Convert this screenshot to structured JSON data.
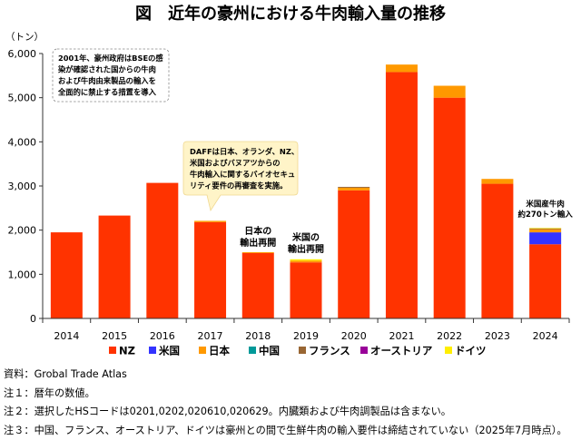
{
  "chart_data": {
    "type": "bar",
    "stacked": true,
    "title": "図　近年の豪州における牛肉輸入量の推移",
    "ylabel": "（トン）",
    "ylim": [
      0,
      6000
    ],
    "yticks": [
      0,
      1000,
      2000,
      3000,
      4000,
      5000,
      6000
    ],
    "ytick_labels": [
      "0",
      "1,000",
      "2,000",
      "3,000",
      "4,000",
      "5,000",
      "6,000"
    ],
    "grid": false,
    "legend_position": "bottom",
    "categories": [
      "2014",
      "2015",
      "2016",
      "2017",
      "2018",
      "2019",
      "2020",
      "2021",
      "2022",
      "2023",
      "2024"
    ],
    "series": [
      {
        "name": "NZ",
        "color": "#ff3300",
        "values": [
          1950,
          2330,
          3070,
          2180,
          1480,
          1270,
          2900,
          5580,
          5000,
          3050,
          1680
        ]
      },
      {
        "name": "米国",
        "color": "#3333ff",
        "values": [
          0,
          0,
          0,
          0,
          0,
          0,
          0,
          0,
          0,
          0,
          270
        ]
      },
      {
        "name": "日本",
        "color": "#ff9900",
        "values": [
          0,
          0,
          0,
          30,
          20,
          40,
          60,
          170,
          270,
          110,
          70
        ]
      },
      {
        "name": "中国",
        "color": "#009999",
        "values": [
          0,
          0,
          0,
          0,
          0,
          0,
          0,
          0,
          0,
          0,
          0
        ]
      },
      {
        "name": "フランス",
        "color": "#996633",
        "values": [
          0,
          0,
          0,
          0,
          0,
          0,
          20,
          0,
          0,
          0,
          20
        ]
      },
      {
        "name": "オーストリア",
        "color": "#990099",
        "values": [
          0,
          0,
          0,
          0,
          0,
          0,
          0,
          0,
          0,
          0,
          0
        ]
      },
      {
        "name": "ドイツ",
        "color": "#ffee00",
        "values": [
          0,
          0,
          0,
          0,
          0,
          30,
          0,
          0,
          0,
          0,
          10
        ]
      }
    ],
    "annotations": [
      {
        "category": "2014",
        "box": true,
        "style": "dashed",
        "lines": [
          "2001年、豪州政府はBSEの感",
          "染が確認された国からの牛肉",
          "および牛肉由来製品の輸入を",
          "全面的に禁止する措置を導入"
        ]
      },
      {
        "category": "2017",
        "box": true,
        "style": "callout",
        "lines": [
          "DAFFは日本、オランダ、NZ、",
          "米国およびバヌアツからの",
          "牛肉輸入に関するバイオセキュ",
          "リティ要件の再審査を実施。"
        ]
      },
      {
        "category": "2018",
        "box": false,
        "lines": [
          "日本の",
          "輸出再開"
        ]
      },
      {
        "category": "2019",
        "box": false,
        "lines": [
          "米国の",
          "輸出再開"
        ]
      },
      {
        "category": "2024",
        "box": false,
        "lines": [
          "米国産牛肉",
          "約270トン輸入"
        ]
      }
    ]
  },
  "notes": [
    "資料：Grobal Trade Atlas",
    "注１：暦年の数値。",
    "注２：選択したHSコードは0201,0202,020610,020629。内臓類および牛肉調製品は含まない。",
    "注３：中国、フランス、オーストリア、ドイツは豪州との間で生鮮牛肉の輸入要件は締結されていない（2025年7月時点）。"
  ]
}
